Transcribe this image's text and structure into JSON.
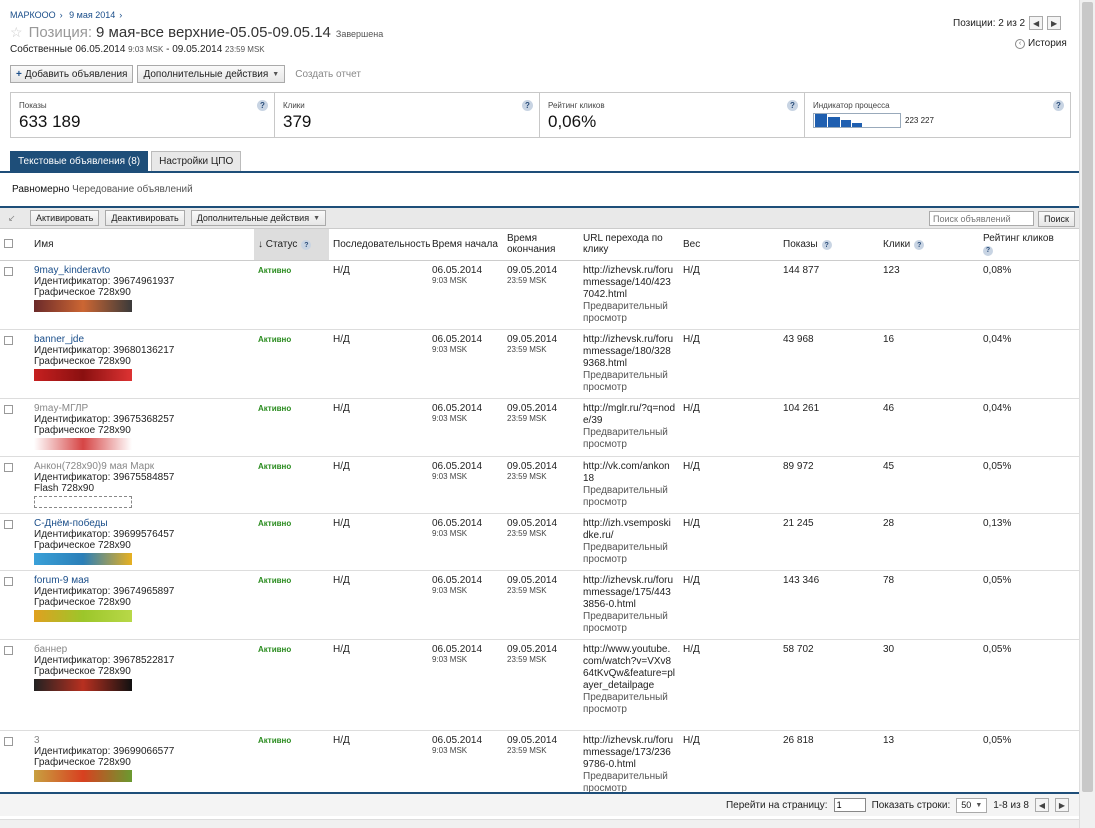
{
  "breadcrumb": [
    "МАРКООО",
    "9 мая 2014"
  ],
  "title_prefix": "Позиция:",
  "title": "9 мая-все верхние-05.05-09.05.14",
  "title_status": "Завершена",
  "subtitle": {
    "label": "Собственные",
    "start_date": "06.05.2014",
    "start_time": "9:03 MSK",
    "sep": " - ",
    "end_date": "09.05.2014",
    "end_time": "23:59 MSK"
  },
  "positions": "Позиции: 2 из 2",
  "history": "История",
  "toolbar": {
    "add": "Добавить объявления",
    "more": "Дополнительные действия",
    "report": "Создать отчет"
  },
  "stats": {
    "impressions": {
      "label": "Показы",
      "value": "633 189"
    },
    "clicks": {
      "label": "Клики",
      "value": "379"
    },
    "ctr": {
      "label": "Рейтинг кликов",
      "value": "0,06%"
    },
    "progress": {
      "label": "Индикатор процесса",
      "value": "223 227"
    }
  },
  "tabs": [
    "Текстовые объявления (8)",
    "Настройки ЦПО"
  ],
  "rotation": {
    "mode": "Равномерно",
    "label": "Чередование объявлений"
  },
  "table_toolbar": {
    "activate": "Активировать",
    "deactivate": "Деактивировать",
    "more": "Дополнительные действия",
    "search_placeholder": "Поиск объявлений",
    "search_button": "Поиск"
  },
  "columns": {
    "name": "Имя",
    "status": "Статус",
    "sequence": "Последовательность",
    "start": "Время начала",
    "end": "Время окончания",
    "url": "URL перехода по клику",
    "weight": "Вес",
    "impressions": "Показы",
    "clicks": "Клики",
    "ctr": "Рейтинг кликов"
  },
  "rows": [
    {
      "name": "9may_kinderavto",
      "dim": false,
      "id": "Идентификатор: 39674961937",
      "type": "Графическое 728x90",
      "status": "Активно",
      "sequence": "Н/Д",
      "start_date": "06.05.2014",
      "start_time": "9:03 MSK",
      "end_date": "09.05.2014",
      "end_time": "23:59 MSK",
      "url": "http://izhevsk.ru/forummessage/140/4237042.html",
      "preview": "Предварительный просмотр",
      "weight": "Н/Д",
      "impressions": "144 877",
      "clicks": "123",
      "ctr": "0,08%",
      "banner_colors": [
        "#6b2a2a",
        "#c63",
        "#3a3a3a"
      ]
    },
    {
      "name": "banner_jde",
      "dim": false,
      "id": "Идентификатор: 39680136217",
      "type": "Графическое 728x90",
      "status": "Активно",
      "sequence": "Н/Д",
      "start_date": "06.05.2014",
      "start_time": "9:03 MSK",
      "end_date": "09.05.2014",
      "end_time": "23:59 MSK",
      "url": "http://izhevsk.ru/forummessage/180/3289368.html",
      "preview": "Предварительный просмотр",
      "weight": "Н/Д",
      "impressions": "43 968",
      "clicks": "16",
      "ctr": "0,04%",
      "banner_colors": [
        "#c62020",
        "#8a1010",
        "#d33"
      ]
    },
    {
      "name": "9may-МГЛР",
      "dim": true,
      "id": "Идентификатор: 39675368257",
      "type": "Графическое 728x90",
      "status": "Активно",
      "sequence": "Н/Д",
      "start_date": "06.05.2014",
      "start_time": "9:03 MSK",
      "end_date": "09.05.2014",
      "end_time": "23:59 MSK",
      "url": "http://mglr.ru/?q=node/39",
      "preview": "Предварительный просмотр",
      "weight": "Н/Д",
      "impressions": "104 261",
      "clicks": "46",
      "ctr": "0,04%",
      "banner_colors": [
        "#fff",
        "#d64545",
        "#fff"
      ]
    },
    {
      "name": "Анкон(728x90)9 мая Марк",
      "dim": true,
      "id": "Идентификатор: 39675584857",
      "type": "Flash 728x90",
      "status": "Активно",
      "sequence": "Н/Д",
      "start_date": "06.05.2014",
      "start_time": "9:03 MSK",
      "end_date": "09.05.2014",
      "end_time": "23:59 MSK",
      "url": "http://vk.com/ankon18",
      "preview": "Предварительный просмотр",
      "weight": "Н/Д",
      "impressions": "89 972",
      "clicks": "45",
      "ctr": "0,05%",
      "banner_colors": []
    },
    {
      "name": "С-Днём-победы",
      "dim": false,
      "id": "Идентификатор: 39699576457",
      "type": "Графическое 728x90",
      "status": "Активно",
      "sequence": "Н/Д",
      "start_date": "06.05.2014",
      "start_time": "9:03 MSK",
      "end_date": "09.05.2014",
      "end_time": "23:59 MSK",
      "url": "http://izh.vsemposkidke.ru/",
      "preview": "Предварительный просмотр",
      "weight": "Н/Д",
      "impressions": "21 245",
      "clicks": "28",
      "ctr": "0,13%",
      "banner_colors": [
        "#3aa0d8",
        "#2b7fb8",
        "#e8b020"
      ]
    },
    {
      "name": "forum-9 мая",
      "dim": false,
      "id": "Идентификатор: 39674965897",
      "type": "Графическое 728x90",
      "status": "Активно",
      "sequence": "Н/Д",
      "start_date": "06.05.2014",
      "start_time": "9:03 MSK",
      "end_date": "09.05.2014",
      "end_time": "23:59 MSK",
      "url": "http://izhevsk.ru/forummessage/175/4433856-0.html",
      "preview": "Предварительный просмотр",
      "weight": "Н/Д",
      "impressions": "143 346",
      "clicks": "78",
      "ctr": "0,05%",
      "banner_colors": [
        "#e0a020",
        "#9cc62a",
        "#b8d848"
      ]
    },
    {
      "name": "баннер",
      "dim": true,
      "id": "Идентификатор: 39678522817",
      "type": "Графическое 728x90",
      "status": "Активно",
      "sequence": "Н/Д",
      "start_date": "06.05.2014",
      "start_time": "9:03 MSK",
      "end_date": "09.05.2014",
      "end_time": "23:59 MSK",
      "url": "http://www.youtube.com/watch?v=VXv864tKvQw&feature=player_detailpage",
      "preview": "Предварительный просмотр",
      "weight": "Н/Д",
      "impressions": "58 702",
      "clicks": "30",
      "ctr": "0,05%",
      "banner_colors": [
        "#222",
        "#b83020",
        "#111"
      ]
    },
    {
      "name": "3",
      "dim": true,
      "id": "Идентификатор: 39699066577",
      "type": "Графическое 728x90",
      "status": "Активно",
      "sequence": "Н/Д",
      "start_date": "06.05.2014",
      "start_time": "9:03 MSK",
      "end_date": "09.05.2014",
      "end_time": "23:59 MSK",
      "url": "http://izhevsk.ru/forummessage/173/2369786-0.html",
      "preview": "Предварительный просмотр",
      "weight": "Н/Д",
      "impressions": "26 818",
      "clicks": "13",
      "ctr": "0,05%",
      "banner_colors": [
        "#c8a040",
        "#d84020",
        "#6a9a30"
      ]
    }
  ],
  "pager": {
    "goto_label": "Перейти на страницу:",
    "goto_value": "1",
    "rows_label": "Показать строки:",
    "rows_value": "50",
    "range": "1-8 из 8"
  },
  "colors": {
    "accent": "#1e4e79",
    "link": "#1a4e8a",
    "active_status": "#2a8c1f",
    "progress": "#1f5fb0"
  }
}
